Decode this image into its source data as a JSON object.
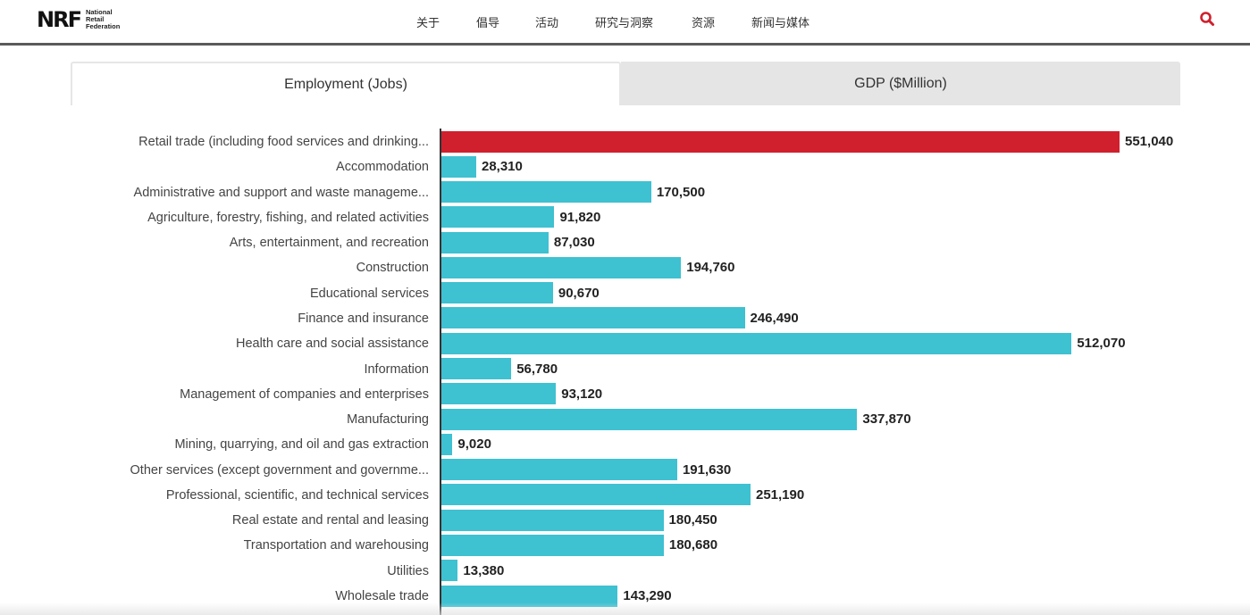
{
  "header": {
    "logo_mark": "NRF",
    "logo_sub": [
      "National",
      "Retail",
      "Federation"
    ],
    "nav": [
      "关于",
      "倡导",
      "活动",
      "研究与洞察",
      "资源",
      "新闻与媒体"
    ],
    "search_icon": "search-icon",
    "accent_color": "#d0202e"
  },
  "tabs": {
    "active": "Employment (Jobs)",
    "inactive": "GDP ($Million)"
  },
  "chart_data": {
    "type": "bar",
    "orientation": "horizontal",
    "title": "Employment (Jobs)",
    "xlabel": "",
    "ylabel": "",
    "xlim": [
      0,
      551040
    ],
    "grid": false,
    "highlight_color": "#d0202e",
    "bar_color": "#3ec1d1",
    "categories": [
      "Retail trade (including food services and drinking...",
      "Accommodation",
      "Administrative and support and waste manageme...",
      "Agriculture, forestry, fishing, and related activities",
      "Arts, entertainment, and recreation",
      "Construction",
      "Educational services",
      "Finance and insurance",
      "Health care and social assistance",
      "Information",
      "Management of companies and enterprises",
      "Manufacturing",
      "Mining, quarrying, and oil and gas extraction",
      "Other services (except government and governme...",
      "Professional, scientific, and technical services",
      "Real estate and rental and leasing",
      "Transportation and warehousing",
      "Utilities",
      "Wholesale trade"
    ],
    "values": [
      551040,
      28310,
      170500,
      91820,
      87030,
      194760,
      90670,
      246490,
      512070,
      56780,
      93120,
      337870,
      9020,
      191630,
      251190,
      180450,
      180680,
      13380,
      143290
    ],
    "value_labels": [
      "551,040",
      "28,310",
      "170,500",
      "91,820",
      "87,030",
      "194,760",
      "90,670",
      "246,490",
      "512,070",
      "56,780",
      "93,120",
      "337,870",
      "9,020",
      "191,630",
      "251,190",
      "180,450",
      "180,680",
      "13,380",
      "143,290"
    ],
    "highlighted_index": 0
  }
}
